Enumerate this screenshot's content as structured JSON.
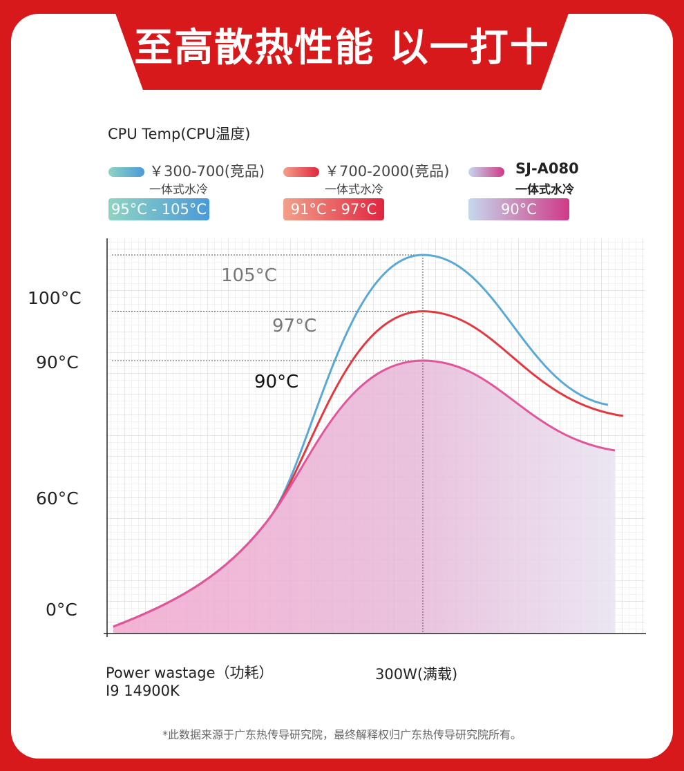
{
  "banner": {
    "title": "至高散热性能 以一打十"
  },
  "chart_data": {
    "type": "line",
    "ylabel": "CPU Temp(CPU温度)",
    "xlabel": "Power wastage（功耗）",
    "xlabel_sub": "I9 14900K",
    "x_tick": "300W(满载)",
    "y_ticks": [
      "100°C",
      "90°C",
      "60°C",
      "0°C"
    ],
    "legend": [
      {
        "price": "￥300-700(竞品)",
        "sub": "一体式水冷",
        "range": "95°C - 105°C",
        "color_from": "#8fd3c4",
        "color_to": "#4a9ad8"
      },
      {
        "price": "￥700-2000(竞品)",
        "sub": "一体式水冷",
        "range": "91°C - 97°C",
        "color_from": "#f2a08a",
        "color_to": "#e0263f"
      },
      {
        "price": "SJ-A080",
        "sub": "一体式水冷",
        "range": "90°C",
        "color_from": "#c5d8ee",
        "color_to": "#d03a86"
      }
    ],
    "annotations": [
      "105°C",
      "97°C",
      "90°C"
    ],
    "series": [
      {
        "name": "￥300-700(竞品)",
        "peak": 105,
        "color": "#5aa8d6"
      },
      {
        "name": "￥700-2000(竞品)",
        "peak": 97,
        "color": "#e0393f"
      },
      {
        "name": "SJ-A080",
        "peak": 90,
        "color": "#e0569c"
      }
    ]
  },
  "footnote": "*此数据来源于广东热传导研究院，最终解释权归广东热传导研究院所有。"
}
